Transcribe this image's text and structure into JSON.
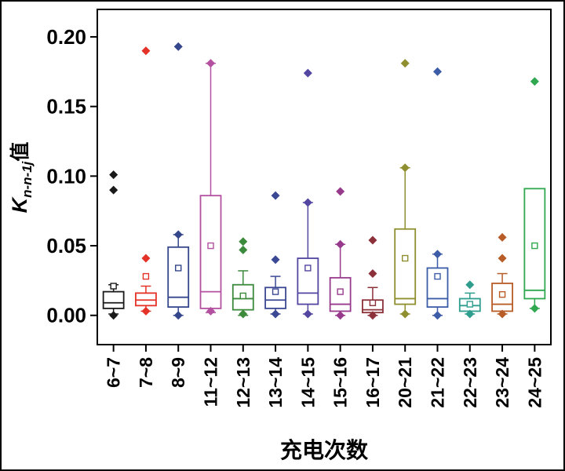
{
  "chart_data": {
    "type": "boxplot",
    "title": "",
    "xlabel": "充电次数",
    "ylabel": {
      "prefix": "K",
      "subscript": "n-n-1j",
      "suffix": "值"
    },
    "ylim": [
      -0.021,
      0.2197
    ],
    "yticks": [
      0.0,
      0.05,
      0.1,
      0.15,
      0.2
    ],
    "ytick_labels": [
      "0.00",
      "0.05",
      "0.10",
      "0.15",
      "0.20"
    ],
    "grid": false,
    "legend": "none",
    "frame_color": "#000000",
    "series": [
      {
        "label": "6~7",
        "color": "#1a1a1a",
        "whisker_low": 0.001,
        "q1": 0.005,
        "median": 0.009,
        "q3": 0.017,
        "whisker_high": 0.022,
        "mean": 0.021,
        "outliers": [
          0.101,
          0.09,
          0.0
        ]
      },
      {
        "label": "7~8",
        "color": "#e53228",
        "whisker_low": 0.003,
        "q1": 0.007,
        "median": 0.011,
        "q3": 0.016,
        "whisker_high": 0.021,
        "mean": 0.028,
        "outliers": [
          0.19,
          0.041,
          0.003
        ]
      },
      {
        "label": "8~9",
        "color": "#35478c",
        "whisker_low": 0.0,
        "q1": 0.006,
        "median": 0.013,
        "q3": 0.049,
        "whisker_high": 0.058,
        "mean": 0.034,
        "outliers": [
          0.193,
          0.058,
          0.0
        ]
      },
      {
        "label": "11~12",
        "color": "#b450a0",
        "whisker_low": 0.002,
        "q1": 0.005,
        "median": 0.017,
        "q3": 0.086,
        "whisker_high": 0.181,
        "mean": 0.05,
        "outliers": [
          0.181,
          0.003
        ]
      },
      {
        "label": "12~13",
        "color": "#3c8a3c",
        "whisker_low": 0.0,
        "q1": 0.004,
        "median": 0.012,
        "q3": 0.022,
        "whisker_high": 0.032,
        "mean": 0.014,
        "outliers": [
          0.053,
          0.047,
          0.001
        ]
      },
      {
        "label": "13~14",
        "color": "#3b4894",
        "whisker_low": 0.001,
        "q1": 0.005,
        "median": 0.011,
        "q3": 0.02,
        "whisker_high": 0.028,
        "mean": 0.017,
        "outliers": [
          0.086,
          0.04,
          0.001
        ]
      },
      {
        "label": "14~15",
        "color": "#5246a0",
        "whisker_low": 0.001,
        "q1": 0.008,
        "median": 0.016,
        "q3": 0.041,
        "whisker_high": 0.081,
        "mean": 0.034,
        "outliers": [
          0.174,
          0.081,
          0.001
        ]
      },
      {
        "label": "15~16",
        "color": "#973a8c",
        "whisker_low": 0.0,
        "q1": 0.003,
        "median": 0.008,
        "q3": 0.027,
        "whisker_high": 0.051,
        "mean": 0.017,
        "outliers": [
          0.089,
          0.051,
          0.0
        ]
      },
      {
        "label": "16~17",
        "color": "#8c3039",
        "whisker_low": 0.0,
        "q1": 0.002,
        "median": 0.004,
        "q3": 0.011,
        "whisker_high": 0.02,
        "mean": 0.009,
        "outliers": [
          0.054,
          0.03,
          0.0
        ]
      },
      {
        "label": "20~21",
        "color": "#8f8f30",
        "whisker_low": 0.001,
        "q1": 0.008,
        "median": 0.012,
        "q3": 0.062,
        "whisker_high": 0.106,
        "mean": 0.041,
        "outliers": [
          0.181,
          0.106,
          0.001
        ]
      },
      {
        "label": "21~22",
        "color": "#3c5ca8",
        "whisker_low": 0.0,
        "q1": 0.006,
        "median": 0.012,
        "q3": 0.034,
        "whisker_high": 0.044,
        "mean": 0.028,
        "outliers": [
          0.175,
          0.044,
          0.0
        ]
      },
      {
        "label": "22~23",
        "color": "#2f9e8f",
        "whisker_low": 0.001,
        "q1": 0.003,
        "median": 0.007,
        "q3": 0.012,
        "whisker_high": 0.016,
        "mean": 0.008,
        "outliers": [
          0.022,
          0.001
        ]
      },
      {
        "label": "23~24",
        "color": "#b85c28",
        "whisker_low": 0.001,
        "q1": 0.003,
        "median": 0.008,
        "q3": 0.023,
        "whisker_high": 0.03,
        "mean": 0.015,
        "outliers": [
          0.056,
          0.041,
          0.001
        ]
      },
      {
        "label": "24~25",
        "color": "#2fa84f",
        "whisker_low": 0.005,
        "q1": 0.012,
        "median": 0.018,
        "q3": 0.091,
        "whisker_high": 0.091,
        "mean": 0.05,
        "outliers": [
          0.168,
          0.005
        ]
      }
    ]
  }
}
